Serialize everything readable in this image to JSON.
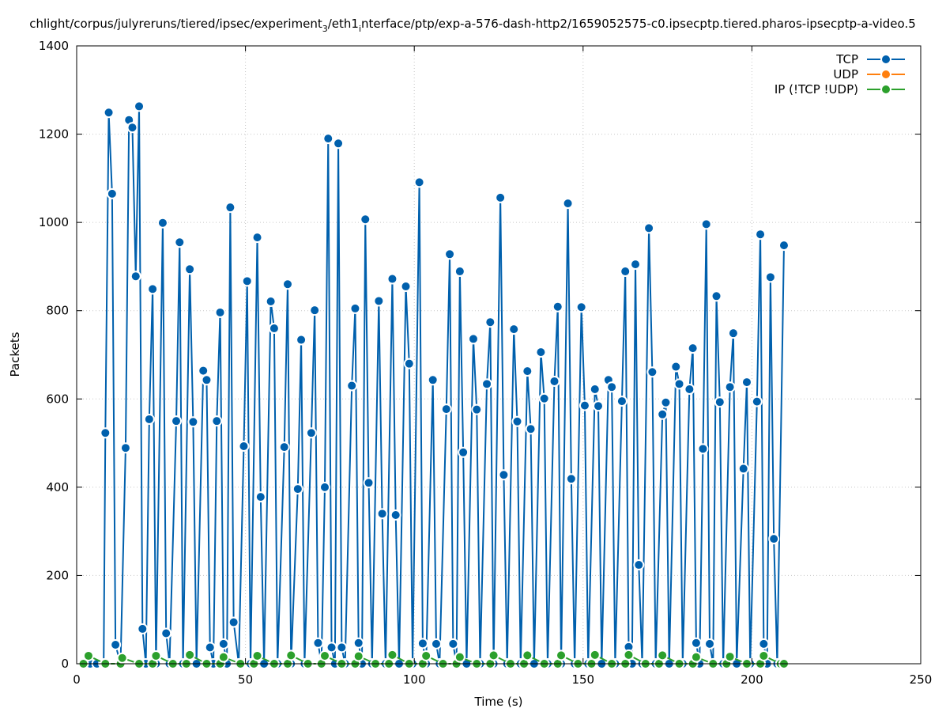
{
  "chart_data": {
    "type": "line",
    "title": "chlight/corpus/julyreruns/tiered/ipsec/experiment_3/eth1_interface/ptp/exp-a-576-dash-http2/1659052575-c0.ipsecptp.tiered.pharos-ipsecptp-a-video.5",
    "title_parts": {
      "pre": "chlight/corpus/julyreruns/tiered/ipsec/experiment",
      "sub1": "3",
      "mid": "/eth1",
      "sub2": "i",
      "post": "nterface/ptp/exp-a-576-dash-http2/1659052575-c0.ipsecptp.tiered.pharos-ipsecptp-a-video.5"
    },
    "xlabel": "Time (s)",
    "ylabel": "Packets",
    "xlim": [
      0,
      250
    ],
    "ylim": [
      0,
      1400
    ],
    "xticks": [
      0,
      50,
      100,
      150,
      200,
      250
    ],
    "yticks": [
      0,
      200,
      400,
      600,
      800,
      1000,
      1200,
      1400
    ],
    "grid": true,
    "legend_position": "top-right",
    "series": [
      {
        "name": "TCP",
        "color": "#0060ad",
        "points": [
          [
            2,
            0
          ],
          [
            4,
            0
          ],
          [
            6,
            0
          ],
          [
            8,
            0
          ],
          [
            8.5,
            523
          ],
          [
            9.5,
            1249
          ],
          [
            10.5,
            1065
          ],
          [
            11.5,
            43
          ],
          [
            13,
            0
          ],
          [
            14.5,
            489
          ],
          [
            15.5,
            1232
          ],
          [
            16.5,
            1215
          ],
          [
            17.5,
            878
          ],
          [
            18.5,
            1263
          ],
          [
            19.5,
            79
          ],
          [
            20.5,
            0
          ],
          [
            21.5,
            554
          ],
          [
            22.5,
            849
          ],
          [
            23.5,
            0
          ],
          [
            25.5,
            999
          ],
          [
            26.5,
            69
          ],
          [
            27.5,
            0
          ],
          [
            29.5,
            550
          ],
          [
            30.5,
            955
          ],
          [
            31.5,
            0
          ],
          [
            33.5,
            894
          ],
          [
            34.5,
            548
          ],
          [
            35.5,
            0
          ],
          [
            37.5,
            664
          ],
          [
            38.5,
            643
          ],
          [
            39.5,
            37
          ],
          [
            40.5,
            0
          ],
          [
            41.5,
            550
          ],
          [
            42.5,
            796
          ],
          [
            43.5,
            45
          ],
          [
            44.5,
            0
          ],
          [
            45.5,
            1034
          ],
          [
            46.5,
            94
          ],
          [
            48,
            0
          ],
          [
            49.5,
            493
          ],
          [
            50.5,
            867
          ],
          [
            51.5,
            0
          ],
          [
            53.5,
            966
          ],
          [
            54.5,
            378
          ],
          [
            55.5,
            0
          ],
          [
            57.5,
            821
          ],
          [
            58.5,
            760
          ],
          [
            59.5,
            0
          ],
          [
            61.5,
            491
          ],
          [
            62.5,
            860
          ],
          [
            63.5,
            0
          ],
          [
            65.5,
            396
          ],
          [
            66.5,
            734
          ],
          [
            67.5,
            0
          ],
          [
            69.5,
            523
          ],
          [
            70.5,
            801
          ],
          [
            71.5,
            47
          ],
          [
            72.5,
            0
          ],
          [
            73.5,
            400
          ],
          [
            74.5,
            1190
          ],
          [
            75.5,
            37
          ],
          [
            76.5,
            0
          ],
          [
            77.5,
            1179
          ],
          [
            78.5,
            37
          ],
          [
            79.5,
            0
          ],
          [
            81.5,
            630
          ],
          [
            82.5,
            805
          ],
          [
            83.5,
            47
          ],
          [
            84.5,
            0
          ],
          [
            85.5,
            1007
          ],
          [
            86.5,
            410
          ],
          [
            87.5,
            0
          ],
          [
            89.5,
            822
          ],
          [
            90.5,
            340
          ],
          [
            91.5,
            0
          ],
          [
            93.5,
            872
          ],
          [
            94.5,
            337
          ],
          [
            95.5,
            0
          ],
          [
            97.5,
            855
          ],
          [
            98.5,
            680
          ],
          [
            99.5,
            0
          ],
          [
            101.5,
            1091
          ],
          [
            102.5,
            46
          ],
          [
            103.5,
            0
          ],
          [
            105.5,
            643
          ],
          [
            106.5,
            45
          ],
          [
            107.5,
            0
          ],
          [
            109.5,
            577
          ],
          [
            110.5,
            928
          ],
          [
            111.5,
            45
          ],
          [
            112.5,
            0
          ],
          [
            113.5,
            889
          ],
          [
            114.5,
            479
          ],
          [
            115.5,
            0
          ],
          [
            117.5,
            736
          ],
          [
            118.5,
            576
          ],
          [
            119.5,
            0
          ],
          [
            121.5,
            634
          ],
          [
            122.5,
            774
          ],
          [
            123.5,
            0
          ],
          [
            125.5,
            1056
          ],
          [
            126.5,
            428
          ],
          [
            127.5,
            0
          ],
          [
            129.5,
            758
          ],
          [
            130.5,
            549
          ],
          [
            131.5,
            0
          ],
          [
            133.5,
            663
          ],
          [
            134.5,
            532
          ],
          [
            135.5,
            0
          ],
          [
            137.5,
            706
          ],
          [
            138.5,
            601
          ],
          [
            139.5,
            0
          ],
          [
            141.5,
            640
          ],
          [
            142.5,
            809
          ],
          [
            143.5,
            0
          ],
          [
            145.5,
            1043
          ],
          [
            146.5,
            419
          ],
          [
            147.5,
            0
          ],
          [
            149.5,
            808
          ],
          [
            150.5,
            585
          ],
          [
            151.5,
            0
          ],
          [
            153.5,
            622
          ],
          [
            154.5,
            584
          ],
          [
            155.5,
            0
          ],
          [
            157.5,
            643
          ],
          [
            158.5,
            627
          ],
          [
            159.5,
            0
          ],
          [
            161.5,
            595
          ],
          [
            162.5,
            889
          ],
          [
            163.5,
            38
          ],
          [
            164.5,
            0
          ],
          [
            165.5,
            905
          ],
          [
            166.5,
            224
          ],
          [
            167.5,
            0
          ],
          [
            169.5,
            987
          ],
          [
            170.5,
            661
          ],
          [
            171.5,
            0
          ],
          [
            173.5,
            565
          ],
          [
            174.5,
            592
          ],
          [
            175.5,
            0
          ],
          [
            177.5,
            673
          ],
          [
            178.5,
            634
          ],
          [
            179.5,
            0
          ],
          [
            181.5,
            622
          ],
          [
            182.5,
            715
          ],
          [
            183.5,
            47
          ],
          [
            184.5,
            0
          ],
          [
            185.5,
            487
          ],
          [
            186.5,
            996
          ],
          [
            187.5,
            45
          ],
          [
            188.5,
            0
          ],
          [
            189.5,
            833
          ],
          [
            190.5,
            593
          ],
          [
            191.5,
            0
          ],
          [
            193.5,
            627
          ],
          [
            194.5,
            749
          ],
          [
            195.5,
            0
          ],
          [
            197.5,
            442
          ],
          [
            198.5,
            638
          ],
          [
            199.5,
            0
          ],
          [
            201.5,
            594
          ],
          [
            202.5,
            973
          ],
          [
            203.5,
            45
          ],
          [
            204.5,
            0
          ],
          [
            205.5,
            876
          ],
          [
            206.5,
            283
          ],
          [
            207.5,
            0
          ],
          [
            209.5,
            948
          ]
        ]
      },
      {
        "name": "UDP",
        "color": "#ff7f0e",
        "points": []
      },
      {
        "name": "IP (!TCP  !UDP)",
        "color": "#2ca02c",
        "points": [
          [
            2,
            0
          ],
          [
            3.5,
            18
          ],
          [
            8.5,
            0
          ],
          [
            13,
            0
          ],
          [
            13.5,
            13
          ],
          [
            18.5,
            0
          ],
          [
            22.5,
            0
          ],
          [
            23.5,
            18
          ],
          [
            28.5,
            0
          ],
          [
            32.5,
            0
          ],
          [
            33.5,
            20
          ],
          [
            38.5,
            0
          ],
          [
            42.5,
            0
          ],
          [
            43.5,
            15
          ],
          [
            48.5,
            0
          ],
          [
            52.5,
            0
          ],
          [
            53.5,
            18
          ],
          [
            58.5,
            0
          ],
          [
            62.5,
            0
          ],
          [
            63.5,
            19
          ],
          [
            68.5,
            0
          ],
          [
            72.5,
            0
          ],
          [
            73.5,
            18
          ],
          [
            78.5,
            0
          ],
          [
            82.5,
            0
          ],
          [
            83.5,
            17
          ],
          [
            88.5,
            0
          ],
          [
            92.5,
            0
          ],
          [
            93.5,
            20
          ],
          [
            98.5,
            0
          ],
          [
            102.5,
            0
          ],
          [
            103.5,
            18
          ],
          [
            108.5,
            0
          ],
          [
            112.5,
            0
          ],
          [
            113.5,
            15
          ],
          [
            118.5,
            0
          ],
          [
            122.5,
            0
          ],
          [
            123.5,
            19
          ],
          [
            128.5,
            0
          ],
          [
            132.5,
            0
          ],
          [
            133.5,
            19
          ],
          [
            138.5,
            0
          ],
          [
            142.5,
            0
          ],
          [
            143.5,
            19
          ],
          [
            148.5,
            0
          ],
          [
            152.5,
            0
          ],
          [
            153.5,
            20
          ],
          [
            158.5,
            0
          ],
          [
            162.5,
            0
          ],
          [
            163.5,
            20
          ],
          [
            168.5,
            0
          ],
          [
            172.5,
            0
          ],
          [
            173.5,
            19
          ],
          [
            178.5,
            0
          ],
          [
            182.5,
            0
          ],
          [
            183.5,
            15
          ],
          [
            188.5,
            0
          ],
          [
            192.5,
            0
          ],
          [
            193.5,
            16
          ],
          [
            198.5,
            0
          ],
          [
            202.5,
            0
          ],
          [
            203.5,
            18
          ],
          [
            208.5,
            0
          ],
          [
            209.5,
            0
          ]
        ]
      }
    ]
  }
}
